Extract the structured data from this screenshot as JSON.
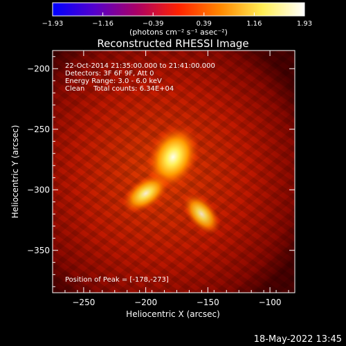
{
  "chart_data": {
    "type": "heatmap",
    "title": "Reconstructed RHESSI Image",
    "xlabel": "Heliocentric X (arcsec)",
    "ylabel": "Heliocentric Y (arcsec)",
    "xlim": [
      -275,
      -80
    ],
    "ylim": [
      -385,
      -185
    ],
    "xticks": [
      -250,
      -200,
      -150,
      -100
    ],
    "xtick_labels": [
      "−250",
      "−200",
      "−150",
      "−100"
    ],
    "yticks": [
      -200,
      -250,
      -300,
      -350
    ],
    "ytick_labels": [
      "−200",
      "−250",
      "−300",
      "−350"
    ],
    "colorbar": {
      "min": -1.93,
      "max": 1.93,
      "ticks": [
        -1.93,
        -1.16,
        -0.39,
        0.39,
        1.16,
        1.93
      ],
      "tick_labels": [
        "−1.93",
        "−1.16",
        "−0.39",
        "0.39",
        "1.16",
        "1.93"
      ],
      "units_label": "(photons cm⁻² s⁻¹ asec⁻²)",
      "colormap": [
        "#0000ff",
        "#5500cc",
        "#aa0066",
        "#ff2200",
        "#ff8800",
        "#ffee55",
        "#ffffff"
      ]
    },
    "annotations": [
      "22-Oct-2014 21:35:00.000 to 21:41:00.000",
      "Detectors: 3F 6F 9F, Att 0",
      "Energy Range: 3.0 - 6.0 keV",
      "Clean    Total counts: 6.34E+04"
    ],
    "peak_label": "Position of Peak = [-178,-273]",
    "sources": [
      {
        "x": -178,
        "y": -273,
        "intensity": 1.93
      },
      {
        "x": -200,
        "y": -303,
        "intensity": 1.45
      },
      {
        "x": -155,
        "y": -320,
        "intensity": 1.2
      }
    ]
  },
  "timestamp": "18-May-2022 13:45"
}
